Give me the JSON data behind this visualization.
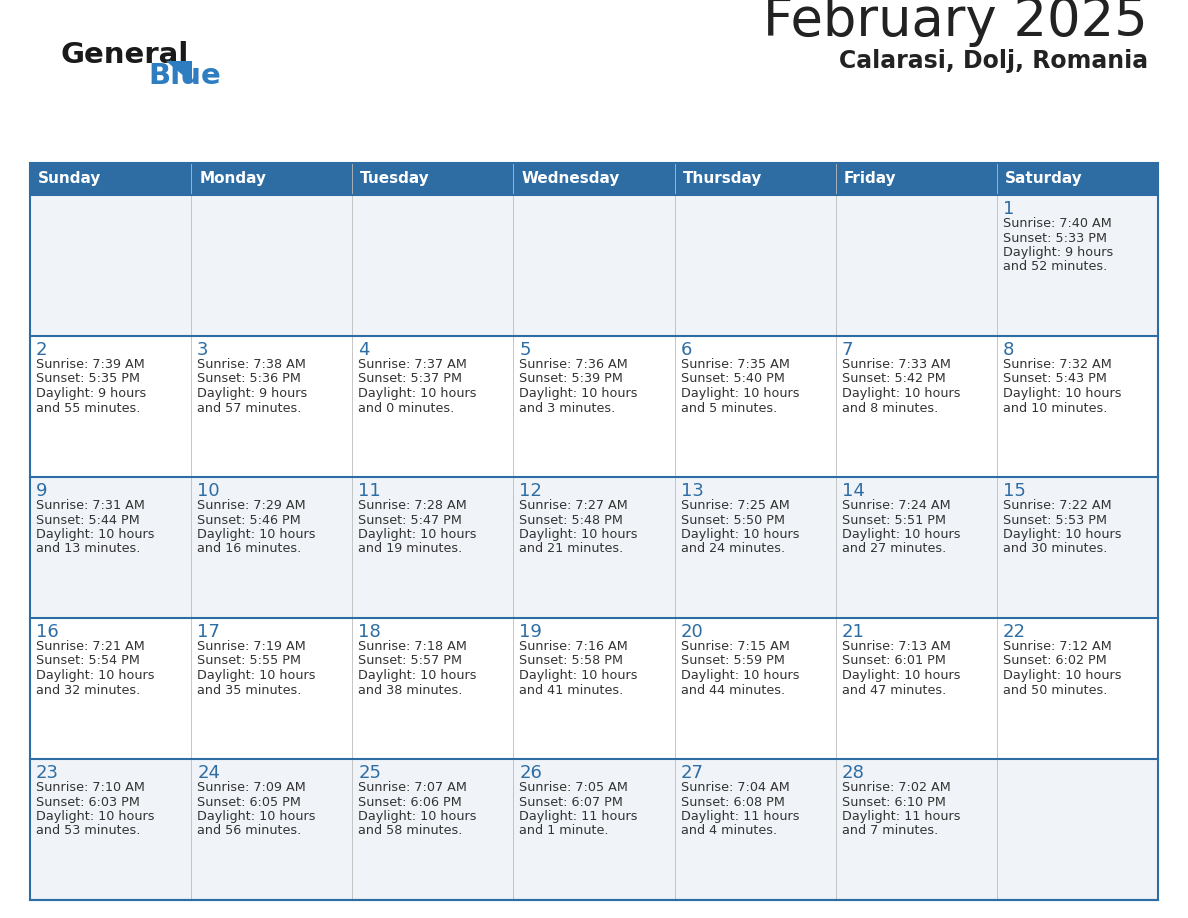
{
  "title": "February 2025",
  "subtitle": "Calarasi, Dolj, Romania",
  "header_bg": "#2E6DA4",
  "header_text_color": "#FFFFFF",
  "cell_bg_odd": "#F0F4F8",
  "cell_bg_even": "#FFFFFF",
  "border_color": "#2E6DA4",
  "day_headers": [
    "Sunday",
    "Monday",
    "Tuesday",
    "Wednesday",
    "Thursday",
    "Friday",
    "Saturday"
  ],
  "text_color": "#333333",
  "logo_general_color": "#1A1A1A",
  "logo_blue_color": "#2E7DC0",
  "calendar_data": [
    [
      null,
      null,
      null,
      null,
      null,
      null,
      {
        "day": 1,
        "sunrise": "7:40 AM",
        "sunset": "5:33 PM",
        "daylight1": "9 hours",
        "daylight2": "and 52 minutes."
      }
    ],
    [
      {
        "day": 2,
        "sunrise": "7:39 AM",
        "sunset": "5:35 PM",
        "daylight1": "9 hours",
        "daylight2": "and 55 minutes."
      },
      {
        "day": 3,
        "sunrise": "7:38 AM",
        "sunset": "5:36 PM",
        "daylight1": "9 hours",
        "daylight2": "and 57 minutes."
      },
      {
        "day": 4,
        "sunrise": "7:37 AM",
        "sunset": "5:37 PM",
        "daylight1": "10 hours",
        "daylight2": "and 0 minutes."
      },
      {
        "day": 5,
        "sunrise": "7:36 AM",
        "sunset": "5:39 PM",
        "daylight1": "10 hours",
        "daylight2": "and 3 minutes."
      },
      {
        "day": 6,
        "sunrise": "7:35 AM",
        "sunset": "5:40 PM",
        "daylight1": "10 hours",
        "daylight2": "and 5 minutes."
      },
      {
        "day": 7,
        "sunrise": "7:33 AM",
        "sunset": "5:42 PM",
        "daylight1": "10 hours",
        "daylight2": "and 8 minutes."
      },
      {
        "day": 8,
        "sunrise": "7:32 AM",
        "sunset": "5:43 PM",
        "daylight1": "10 hours",
        "daylight2": "and 10 minutes."
      }
    ],
    [
      {
        "day": 9,
        "sunrise": "7:31 AM",
        "sunset": "5:44 PM",
        "daylight1": "10 hours",
        "daylight2": "and 13 minutes."
      },
      {
        "day": 10,
        "sunrise": "7:29 AM",
        "sunset": "5:46 PM",
        "daylight1": "10 hours",
        "daylight2": "and 16 minutes."
      },
      {
        "day": 11,
        "sunrise": "7:28 AM",
        "sunset": "5:47 PM",
        "daylight1": "10 hours",
        "daylight2": "and 19 minutes."
      },
      {
        "day": 12,
        "sunrise": "7:27 AM",
        "sunset": "5:48 PM",
        "daylight1": "10 hours",
        "daylight2": "and 21 minutes."
      },
      {
        "day": 13,
        "sunrise": "7:25 AM",
        "sunset": "5:50 PM",
        "daylight1": "10 hours",
        "daylight2": "and 24 minutes."
      },
      {
        "day": 14,
        "sunrise": "7:24 AM",
        "sunset": "5:51 PM",
        "daylight1": "10 hours",
        "daylight2": "and 27 minutes."
      },
      {
        "day": 15,
        "sunrise": "7:22 AM",
        "sunset": "5:53 PM",
        "daylight1": "10 hours",
        "daylight2": "and 30 minutes."
      }
    ],
    [
      {
        "day": 16,
        "sunrise": "7:21 AM",
        "sunset": "5:54 PM",
        "daylight1": "10 hours",
        "daylight2": "and 32 minutes."
      },
      {
        "day": 17,
        "sunrise": "7:19 AM",
        "sunset": "5:55 PM",
        "daylight1": "10 hours",
        "daylight2": "and 35 minutes."
      },
      {
        "day": 18,
        "sunrise": "7:18 AM",
        "sunset": "5:57 PM",
        "daylight1": "10 hours",
        "daylight2": "and 38 minutes."
      },
      {
        "day": 19,
        "sunrise": "7:16 AM",
        "sunset": "5:58 PM",
        "daylight1": "10 hours",
        "daylight2": "and 41 minutes."
      },
      {
        "day": 20,
        "sunrise": "7:15 AM",
        "sunset": "5:59 PM",
        "daylight1": "10 hours",
        "daylight2": "and 44 minutes."
      },
      {
        "day": 21,
        "sunrise": "7:13 AM",
        "sunset": "6:01 PM",
        "daylight1": "10 hours",
        "daylight2": "and 47 minutes."
      },
      {
        "day": 22,
        "sunrise": "7:12 AM",
        "sunset": "6:02 PM",
        "daylight1": "10 hours",
        "daylight2": "and 50 minutes."
      }
    ],
    [
      {
        "day": 23,
        "sunrise": "7:10 AM",
        "sunset": "6:03 PM",
        "daylight1": "10 hours",
        "daylight2": "and 53 minutes."
      },
      {
        "day": 24,
        "sunrise": "7:09 AM",
        "sunset": "6:05 PM",
        "daylight1": "10 hours",
        "daylight2": "and 56 minutes."
      },
      {
        "day": 25,
        "sunrise": "7:07 AM",
        "sunset": "6:06 PM",
        "daylight1": "10 hours",
        "daylight2": "and 58 minutes."
      },
      {
        "day": 26,
        "sunrise": "7:05 AM",
        "sunset": "6:07 PM",
        "daylight1": "11 hours",
        "daylight2": "and 1 minute."
      },
      {
        "day": 27,
        "sunrise": "7:04 AM",
        "sunset": "6:08 PM",
        "daylight1": "11 hours",
        "daylight2": "and 4 minutes."
      },
      {
        "day": 28,
        "sunrise": "7:02 AM",
        "sunset": "6:10 PM",
        "daylight1": "11 hours",
        "daylight2": "and 7 minutes."
      },
      null
    ]
  ],
  "fig_width": 11.88,
  "fig_height": 9.18,
  "dpi": 100
}
